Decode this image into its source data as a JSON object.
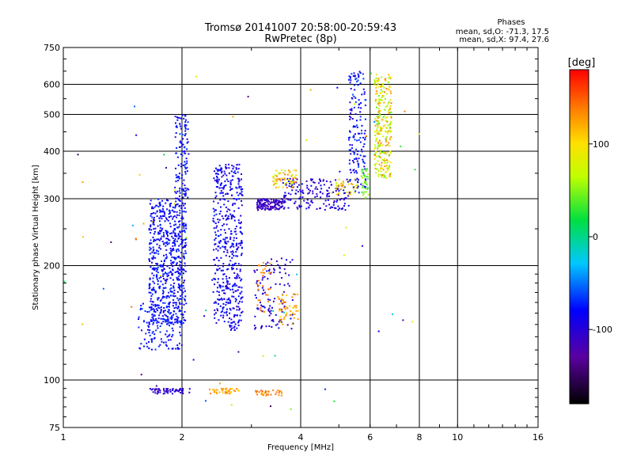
{
  "chart_data": {
    "type": "scatter",
    "title": "Tromsø 20141007 20:58:00-20:59:43",
    "subtitle": "RwPretec (8p)",
    "xlabel": "Frequency [MHz]",
    "ylabel": "Stationary phase Virtual Height [km]",
    "x_scale": "log",
    "y_scale": "log",
    "xlim": [
      1,
      16
    ],
    "ylim": [
      75,
      750
    ],
    "x_ticks": [
      1,
      2,
      4,
      6,
      8,
      10,
      16
    ],
    "x_tick_labels": [
      "1",
      "2",
      "4",
      "6",
      "8",
      "10",
      "16"
    ],
    "y_ticks": [
      75,
      100,
      200,
      300,
      400,
      500,
      600,
      750
    ],
    "y_tick_labels": [
      "75",
      "100",
      "200",
      "300",
      "400",
      "500",
      "600",
      "750"
    ],
    "grid": true,
    "stats": {
      "heading": "Phases",
      "line_o": "mean, sd,O: -71.3, 17.5",
      "line_x": "mean, sd,X:  97.4, 27.6"
    },
    "colorbar": {
      "label": "[deg]",
      "range": [
        -180,
        180
      ],
      "ticks": [
        100,
        0,
        -100
      ],
      "tick_labels": [
        "100",
        "0",
        "-100"
      ]
    },
    "clusters": [
      {
        "x": [
          1.65,
          2.05
        ],
        "y": [
          140,
          300
        ],
        "phase": [
          -95,
          -65
        ],
        "count": 650
      },
      {
        "x": [
          1.92,
          2.08
        ],
        "y": [
          300,
          500
        ],
        "phase": [
          -95,
          -65
        ],
        "count": 120
      },
      {
        "x": [
          2.4,
          2.85
        ],
        "y": [
          135,
          370
        ],
        "phase": [
          -105,
          -70
        ],
        "count": 480
      },
      {
        "x": [
          1.55,
          2.0
        ],
        "y": [
          120,
          160
        ],
        "phase": [
          -85,
          -65
        ],
        "count": 120
      },
      {
        "x": [
          3.1,
          3.6
        ],
        "y": [
          280,
          300
        ],
        "phase": [
          -130,
          -90
        ],
        "count": 130
      },
      {
        "x": [
          3.6,
          5.3
        ],
        "y": [
          280,
          340
        ],
        "phase": [
          -120,
          -80
        ],
        "count": 170
      },
      {
        "x": [
          3.4,
          3.9
        ],
        "y": [
          320,
          360
        ],
        "phase": [
          60,
          150
        ],
        "count": 60
      },
      {
        "x": [
          4.9,
          5.6
        ],
        "y": [
          305,
          340
        ],
        "phase": [
          70,
          130
        ],
        "count": 40
      },
      {
        "x": [
          5.3,
          5.85
        ],
        "y": [
          310,
          650
        ],
        "phase": [
          -100,
          -60
        ],
        "count": 160
      },
      {
        "x": [
          5.7,
          5.95
        ],
        "y": [
          300,
          360
        ],
        "phase": [
          20,
          60
        ],
        "count": 40
      },
      {
        "x": [
          6.15,
          6.8
        ],
        "y": [
          340,
          640
        ],
        "phase": [
          40,
          140
        ],
        "count": 260
      },
      {
        "x": [
          3.05,
          3.85
        ],
        "y": [
          135,
          210
        ],
        "phase": [
          -120,
          -80
        ],
        "count": 110
      },
      {
        "x": [
          3.1,
          3.35
        ],
        "y": [
          150,
          205
        ],
        "phase": [
          120,
          150
        ],
        "count": 30
      },
      {
        "x": [
          3.5,
          3.95
        ],
        "y": [
          140,
          170
        ],
        "phase": [
          100,
          150
        ],
        "count": 50
      },
      {
        "x": [
          1.65,
          2.1
        ],
        "y": [
          92,
          95
        ],
        "phase": [
          -120,
          -90
        ],
        "count": 60
      },
      {
        "x": [
          2.35,
          2.8
        ],
        "y": [
          92,
          95
        ],
        "phase": [
          100,
          140
        ],
        "count": 40
      },
      {
        "x": [
          3.05,
          3.6
        ],
        "y": [
          91,
          94
        ],
        "phase": [
          120,
          150
        ],
        "count": 30
      },
      {
        "x": [
          1.0,
          8.0
        ],
        "y": [
          80,
          650
        ],
        "phase": [
          -150,
          150
        ],
        "count": 70
      }
    ]
  }
}
